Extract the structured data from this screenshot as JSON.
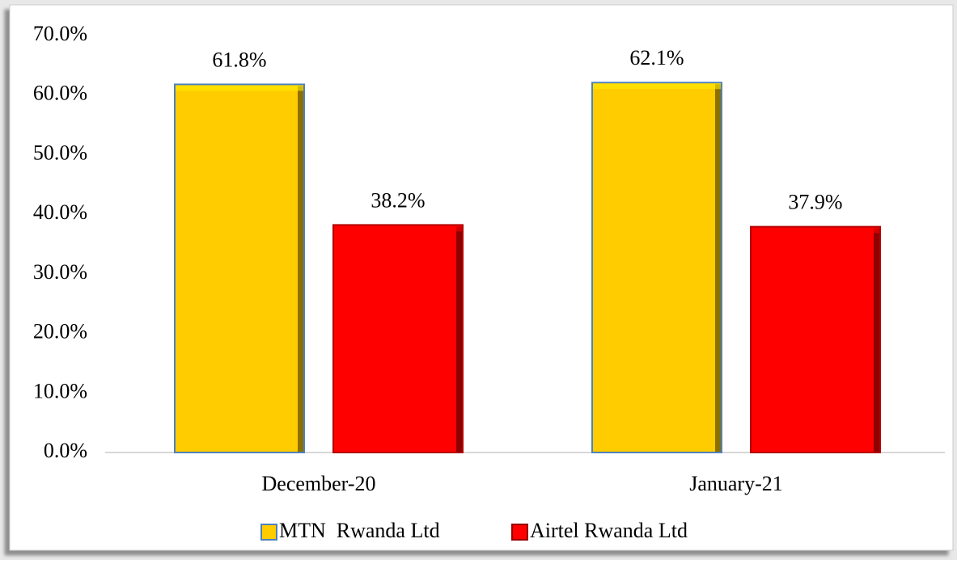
{
  "chart_data": {
    "type": "bar",
    "categories": [
      "December-20",
      "January-21"
    ],
    "series": [
      {
        "name": "MTN  Rwanda Ltd",
        "color": "#ffcc00",
        "values": [
          61.8,
          62.1
        ],
        "value_labels": [
          "61.8%",
          "62.1%"
        ]
      },
      {
        "name": "Airtel Rwanda Ltd",
        "color": "#ff0000",
        "values": [
          38.2,
          37.9
        ],
        "value_labels": [
          "38.2%",
          "37.9%"
        ]
      }
    ],
    "ylim": [
      0,
      70
    ],
    "yticks": [
      {
        "value": 0,
        "label": "0.0%"
      },
      {
        "value": 10,
        "label": "10.0%"
      },
      {
        "value": 20,
        "label": "20.0%"
      },
      {
        "value": 30,
        "label": "30.0%"
      },
      {
        "value": 40,
        "label": "40.0%"
      },
      {
        "value": 50,
        "label": "50.0%"
      },
      {
        "value": 60,
        "label": "60.0%"
      },
      {
        "value": 70,
        "label": "70.0%"
      }
    ],
    "grid": false,
    "legend": "bottom"
  }
}
